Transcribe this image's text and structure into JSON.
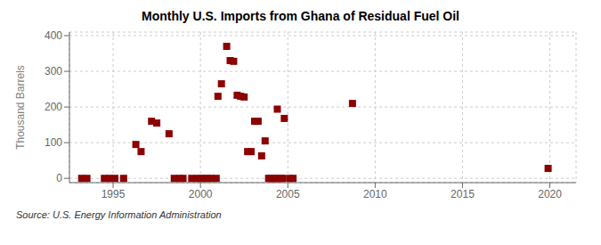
{
  "chart_data": {
    "type": "scatter",
    "title": "Monthly U.S. Imports from Ghana of Residual Fuel Oil",
    "ylabel": "Thousand Barrels",
    "annotations": [
      "Source: U.S. Energy Information Administration"
    ],
    "x": [
      1993.2,
      1993.5,
      1994.5,
      1994.8,
      1995.1,
      1995.6,
      1996.3,
      1996.6,
      1997.2,
      1997.5,
      1998.2,
      1998.5,
      1998.8,
      1999.0,
      1999.5,
      1999.8,
      2000.0,
      2000.2,
      2000.4,
      2000.6,
      2000.9,
      2001.0,
      2001.2,
      2001.5,
      2001.7,
      2001.9,
      2002.1,
      2002.3,
      2002.5,
      2002.7,
      2002.9,
      2003.1,
      2003.3,
      2003.5,
      2003.7,
      2003.9,
      2004.0,
      2004.1,
      2004.2,
      2004.3,
      2004.5,
      2004.6,
      2004.7,
      2004.4,
      2004.8,
      2005.1,
      2005.3,
      2008.7,
      2019.9
    ],
    "values": [
      0,
      0,
      0,
      0,
      0,
      0,
      95,
      75,
      160,
      155,
      125,
      0,
      0,
      0,
      0,
      0,
      0,
      0,
      0,
      0,
      0,
      230,
      265,
      370,
      330,
      328,
      233,
      230,
      228,
      75,
      75,
      160,
      160,
      63,
      105,
      0,
      0,
      0,
      0,
      0,
      0,
      0,
      0,
      194,
      168,
      0,
      0,
      210,
      28
    ],
    "color": "#8b0000",
    "marker": "square",
    "xlim": [
      1992.5,
      2021.5
    ],
    "ylim": [
      -12,
      410
    ],
    "xticks": [
      1995,
      2000,
      2005,
      2010,
      2015,
      2020
    ],
    "yticks": [
      0,
      100,
      200,
      300,
      400
    ],
    "grid": true
  }
}
